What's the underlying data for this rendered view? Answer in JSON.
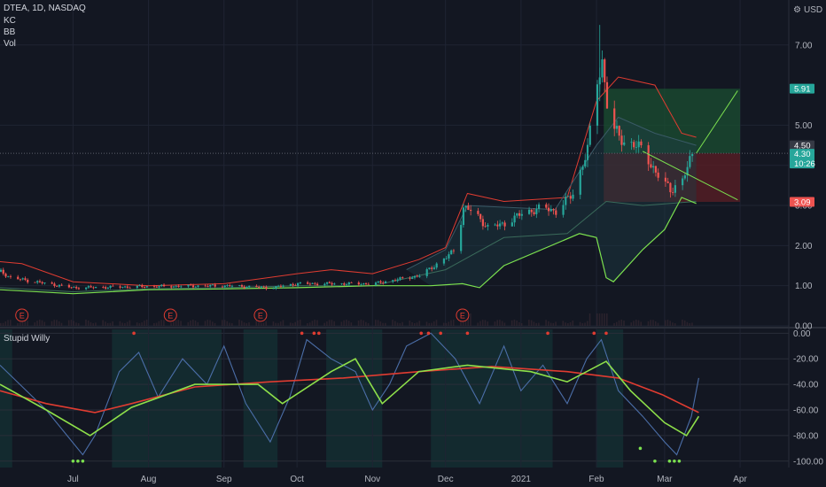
{
  "header": {
    "symbol_line": "DTEA, 1D, NASDAQ",
    "indicators": [
      "KC",
      "BB",
      "Vol"
    ],
    "currency": "USD",
    "currency_icon": "settings-icon"
  },
  "colors": {
    "background": "#131722",
    "grid": "#1f2433",
    "bull": "#26a69a",
    "bear": "#ef5350",
    "blue": "#4b6ea8",
    "green": "#7be04f",
    "red": "#e03c31",
    "text": "#b2b5be"
  },
  "price_axis": {
    "ticks": [
      "7.00",
      "5.00",
      "4.00",
      "3.00",
      "2.00",
      "1.00",
      "0.00"
    ],
    "ylim": [
      0,
      7.9
    ]
  },
  "price_labels": [
    {
      "value": "5.91",
      "kind": "target"
    },
    {
      "value": "4.50",
      "kind": "marker"
    },
    {
      "value": "4.30",
      "sub": "10:26",
      "kind": "last"
    },
    {
      "value": "3.09",
      "kind": "stop"
    }
  ],
  "time_axis": {
    "labels": [
      "Jul",
      "Aug",
      "Sep",
      "Oct",
      "Nov",
      "Dec",
      "2021",
      "Feb",
      "Mar",
      "Apr"
    ]
  },
  "earnings": {
    "label": "E",
    "dates": [
      "2020-06-10",
      "2020-08-10",
      "2020-09-16",
      "2020-12-08"
    ]
  },
  "position": {
    "entry": 4.3,
    "target": 5.91,
    "stop": 3.09,
    "start": "2021-02-04",
    "end": "2021-04-01"
  },
  "oscillator": {
    "title": "Stupid Willy",
    "ticks": [
      "0.00",
      "-20.00",
      "-40.00",
      "-60.00",
      "-80.00",
      "-100.00"
    ],
    "ylim": [
      -105,
      3
    ],
    "highlight_ranges": [
      [
        "2020-06-01",
        "2020-06-06"
      ],
      [
        "2020-07-17",
        "2020-08-31"
      ],
      [
        "2020-09-09",
        "2020-09-23"
      ],
      [
        "2020-10-13",
        "2020-11-05"
      ],
      [
        "2020-11-25",
        "2021-01-14"
      ],
      [
        "2021-02-01",
        "2021-02-12"
      ]
    ]
  },
  "chart_data": {
    "type": "candlestick",
    "x_start": "2020-06-01",
    "x_end": "2021-04-21",
    "price_anchors": [
      [
        "2020-06-01",
        1.35
      ],
      [
        "2020-06-05",
        1.2
      ],
      [
        "2020-06-20",
        1.05
      ],
      [
        "2020-07-01",
        0.95
      ],
      [
        "2020-08-01",
        0.98
      ],
      [
        "2020-09-01",
        1.0
      ],
      [
        "2020-09-20",
        0.95
      ],
      [
        "2020-10-01",
        1.05
      ],
      [
        "2020-11-01",
        1.05
      ],
      [
        "2020-11-20",
        1.25
      ],
      [
        "2020-12-01",
        1.7
      ],
      [
        "2020-12-05",
        1.95
      ],
      [
        "2020-12-08",
        2.95
      ],
      [
        "2020-12-12",
        2.85
      ],
      [
        "2020-12-18",
        2.45
      ],
      [
        "2020-12-25",
        2.55
      ],
      [
        "2021-01-01",
        2.8
      ],
      [
        "2021-01-10",
        2.95
      ],
      [
        "2021-01-15",
        2.85
      ],
      [
        "2021-01-22",
        3.3
      ],
      [
        "2021-01-28",
        4.4
      ],
      [
        "2021-02-01",
        6.1
      ],
      [
        "2021-02-03",
        6.6
      ],
      [
        "2021-02-06",
        5.0
      ],
      [
        "2021-02-12",
        4.6
      ],
      [
        "2021-02-20",
        4.4
      ],
      [
        "2021-02-25",
        3.8
      ],
      [
        "2021-03-03",
        3.4
      ],
      [
        "2021-03-08",
        3.6
      ],
      [
        "2021-03-12",
        4.3
      ]
    ],
    "kc_upper": [
      [
        "2020-06-01",
        1.6
      ],
      [
        "2020-06-10",
        1.55
      ],
      [
        "2020-07-01",
        1.1
      ],
      [
        "2020-08-01",
        1.0
      ],
      [
        "2020-09-01",
        1.05
      ],
      [
        "2020-10-01",
        1.3
      ],
      [
        "2020-10-15",
        1.4
      ],
      [
        "2020-11-01",
        1.3
      ],
      [
        "2020-11-20",
        1.65
      ],
      [
        "2020-12-01",
        1.95
      ],
      [
        "2020-12-10",
        3.3
      ],
      [
        "2020-12-25",
        3.1
      ],
      [
        "2021-01-20",
        3.2
      ],
      [
        "2021-02-01",
        5.6
      ],
      [
        "2021-02-10",
        6.2
      ],
      [
        "2021-02-25",
        6.0
      ],
      [
        "2021-03-08",
        4.8
      ],
      [
        "2021-03-14",
        4.7
      ]
    ],
    "bb_upper": [
      [
        "2020-11-15",
        1.4
      ],
      [
        "2020-12-01",
        1.9
      ],
      [
        "2020-12-10",
        3.0
      ],
      [
        "2021-01-15",
        2.9
      ],
      [
        "2021-02-01",
        4.5
      ],
      [
        "2021-02-10",
        5.2
      ],
      [
        "2021-02-25",
        4.8
      ],
      [
        "2021-03-14",
        4.5
      ]
    ],
    "bb_lower": [
      [
        "2020-06-01",
        0.9
      ],
      [
        "2020-07-01",
        0.8
      ],
      [
        "2020-08-01",
        0.9
      ],
      [
        "2020-09-01",
        0.92
      ],
      [
        "2020-10-01",
        0.95
      ],
      [
        "2020-11-01",
        1.0
      ],
      [
        "2020-11-25",
        1.0
      ],
      [
        "2020-12-08",
        1.05
      ],
      [
        "2020-12-15",
        0.95
      ],
      [
        "2020-12-25",
        1.5
      ],
      [
        "2021-01-25",
        2.3
      ],
      [
        "2021-02-01",
        2.2
      ],
      [
        "2021-02-05",
        1.2
      ],
      [
        "2021-02-08",
        1.1
      ],
      [
        "2021-02-20",
        1.9
      ],
      [
        "2021-03-01",
        2.4
      ],
      [
        "2021-03-08",
        3.2
      ],
      [
        "2021-03-14",
        3.05
      ]
    ],
    "kc_lower": [
      [
        "2020-06-01",
        0.95
      ],
      [
        "2020-07-01",
        0.85
      ],
      [
        "2020-08-01",
        0.92
      ],
      [
        "2020-09-01",
        0.95
      ],
      [
        "2020-10-01",
        1.0
      ],
      [
        "2020-11-01",
        1.0
      ],
      [
        "2020-12-01",
        1.4
      ],
      [
        "2020-12-25",
        2.2
      ],
      [
        "2021-01-20",
        2.3
      ],
      [
        "2021-02-05",
        3.1
      ],
      [
        "2021-02-20",
        3.0
      ],
      [
        "2021-03-14",
        3.1
      ]
    ],
    "willy": [
      [
        "2020-06-01",
        -25
      ],
      [
        "2020-06-20",
        -60
      ],
      [
        "2020-07-05",
        -95
      ],
      [
        "2020-07-10",
        -80
      ],
      [
        "2020-07-20",
        -30
      ],
      [
        "2020-07-28",
        -15
      ],
      [
        "2020-08-05",
        -50
      ],
      [
        "2020-08-15",
        -20
      ],
      [
        "2020-08-25",
        -40
      ],
      [
        "2020-09-01",
        -10
      ],
      [
        "2020-09-10",
        -55
      ],
      [
        "2020-09-20",
        -85
      ],
      [
        "2020-09-28",
        -50
      ],
      [
        "2020-10-05",
        -5
      ],
      [
        "2020-10-15",
        -20
      ],
      [
        "2020-10-25",
        -30
      ],
      [
        "2020-11-01",
        -60
      ],
      [
        "2020-11-08",
        -40
      ],
      [
        "2020-11-15",
        -10
      ],
      [
        "2020-11-25",
        0
      ],
      [
        "2020-12-05",
        -20
      ],
      [
        "2020-12-15",
        -55
      ],
      [
        "2020-12-25",
        -10
      ],
      [
        "2021-01-01",
        -45
      ],
      [
        "2021-01-10",
        -25
      ],
      [
        "2021-01-20",
        -55
      ],
      [
        "2021-01-28",
        -20
      ],
      [
        "2021-02-03",
        -5
      ],
      [
        "2021-02-10",
        -45
      ],
      [
        "2021-02-20",
        -65
      ],
      [
        "2021-03-01",
        -85
      ],
      [
        "2021-03-06",
        -95
      ],
      [
        "2021-03-12",
        -65
      ],
      [
        "2021-03-15",
        -35
      ]
    ],
    "willy_fast": [
      [
        "2020-06-01",
        -40
      ],
      [
        "2020-06-20",
        -60
      ],
      [
        "2020-07-08",
        -80
      ],
      [
        "2020-07-25",
        -58
      ],
      [
        "2020-08-20",
        -40
      ],
      [
        "2020-09-15",
        -40
      ],
      [
        "2020-09-25",
        -55
      ],
      [
        "2020-10-15",
        -30
      ],
      [
        "2020-10-25",
        -20
      ],
      [
        "2020-11-05",
        -55
      ],
      [
        "2020-11-20",
        -30
      ],
      [
        "2020-12-10",
        -25
      ],
      [
        "2021-01-05",
        -30
      ],
      [
        "2021-01-20",
        -38
      ],
      [
        "2021-02-05",
        -22
      ],
      [
        "2021-02-15",
        -45
      ],
      [
        "2021-03-01",
        -70
      ],
      [
        "2021-03-10",
        -80
      ],
      [
        "2021-03-15",
        -65
      ]
    ],
    "willy_slow": [
      [
        "2020-06-01",
        -45
      ],
      [
        "2020-06-20",
        -55
      ],
      [
        "2020-07-10",
        -62
      ],
      [
        "2020-07-25",
        -55
      ],
      [
        "2020-08-20",
        -42
      ],
      [
        "2020-09-20",
        -38
      ],
      [
        "2020-10-20",
        -35
      ],
      [
        "2020-11-20",
        -30
      ],
      [
        "2020-12-20",
        -26
      ],
      [
        "2021-01-20",
        -30
      ],
      [
        "2021-02-10",
        -35
      ],
      [
        "2021-02-28",
        -48
      ],
      [
        "2021-03-15",
        -62
      ]
    ]
  }
}
